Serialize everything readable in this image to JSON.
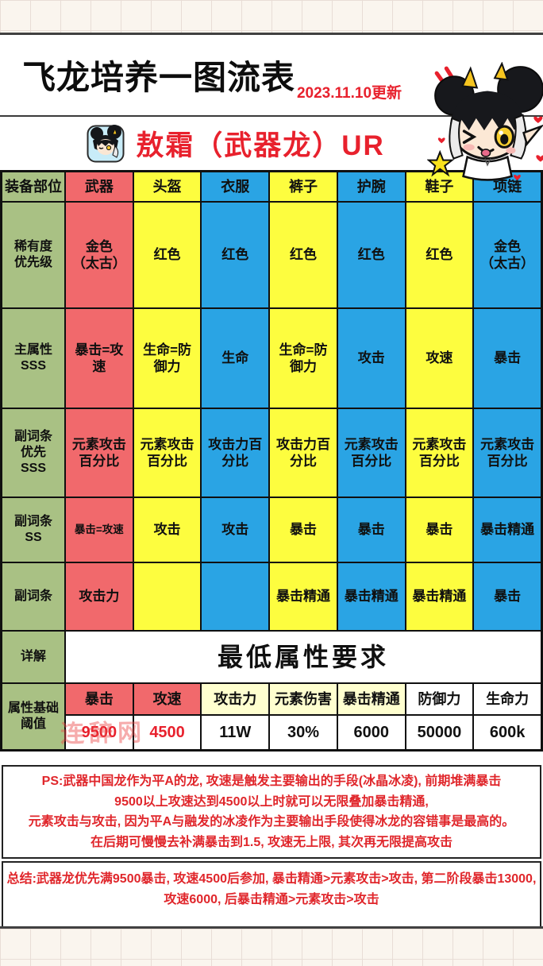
{
  "page": {
    "title": "飞龙培养一图流表",
    "update": "2023.11.10更新",
    "subtitle": "敖霜（武器龙）UR",
    "watermark": "连辞网"
  },
  "table": {
    "corner": "装备部位",
    "label_color": "#a9c184",
    "columns": [
      "武器",
      "头盔",
      "衣服",
      "裤子",
      "护腕",
      "鞋子",
      "项链"
    ],
    "column_colors": [
      "#f1696c",
      "#fdfd3f",
      "#2aa4e4",
      "#fdfd3f",
      "#2aa4e4",
      "#fdfd3f",
      "#2aa4e4"
    ],
    "rows": [
      {
        "label": "稀有度\n优先级",
        "cells": [
          "金色\n（太古）",
          "红色",
          "红色",
          "红色",
          "红色",
          "红色",
          "金色\n（太古）"
        ]
      },
      {
        "label": "主属性\nSSS",
        "cells": [
          "暴击=攻\n速",
          "生命=防\n御力",
          "生命",
          "生命=防\n御力",
          "攻击",
          "攻速",
          "暴击"
        ]
      },
      {
        "label": "副词条\n优先\nSSS",
        "cells": [
          "元素攻击\n百分比",
          "元素攻击\n百分比",
          "攻击力百\n分比",
          "攻击力百\n分比",
          "元素攻击\n百分比",
          "元素攻击\n百分比",
          "元素攻击\n百分比"
        ]
      },
      {
        "label": "副词条\nSS",
        "cells": [
          {
            "text": "暴击=攻速",
            "small": true
          },
          "攻击",
          "攻击",
          "暴击",
          "暴击",
          "暴击",
          "暴击精通"
        ]
      },
      {
        "label": "副词条",
        "cells": [
          "攻击力",
          "",
          "",
          "暴击精通",
          "暴击精通",
          "暴击精通",
          "暴击"
        ]
      }
    ],
    "detail": {
      "label": "详解",
      "title": "最低属性要求"
    },
    "threshold": {
      "label": "属性基础阈值",
      "headers": [
        "暴击",
        "攻速",
        "攻击力",
        "元素伤害",
        "暴击精通",
        "防御力",
        "生命力"
      ],
      "header_colors": [
        "#f1696c",
        "#f1696c",
        "#ffffcf",
        "#ffffcf",
        "#ffffcf",
        "#ffffff",
        "#ffffff"
      ],
      "values": [
        "9500",
        "4500",
        "11W",
        "30%",
        "6000",
        "50000",
        "600k"
      ],
      "value_colors": [
        "#e8212d",
        "#e8212d",
        "#111111",
        "#111111",
        "#111111",
        "#111111",
        "#111111"
      ]
    }
  },
  "notes": {
    "ps": "PS:武器中国龙作为平A的龙, 攻速是触发主要输出的手段(冰晶冰凌), 前期堆满暴击\n9500以上攻速达到4500以上时就可以无限叠加暴击精通,\n元素攻击与攻击, 因为平A与融发的冰凌作为主要输出手段使得冰龙的容错事是最高的。\n在后期可慢慢去补满暴击到1.5, 攻速无上限, 其次再无限提高攻击",
    "summary": "总结:武器龙优先满9500暴击, 攻速4500后参加, 暴击精通>元素攻击>攻击, 第二阶段暴击13000, 攻速6000, 后暴击精通>元素攻击>攻击"
  },
  "colors": {
    "accent_red_text": "#e8212d",
    "cell_red": "#f1696c",
    "cell_yellow": "#fdfd3f",
    "cell_blue": "#2aa4e4",
    "cell_green": "#a9c184",
    "cell_pale_yellow": "#ffffcf",
    "paper": "#faf5ee"
  }
}
